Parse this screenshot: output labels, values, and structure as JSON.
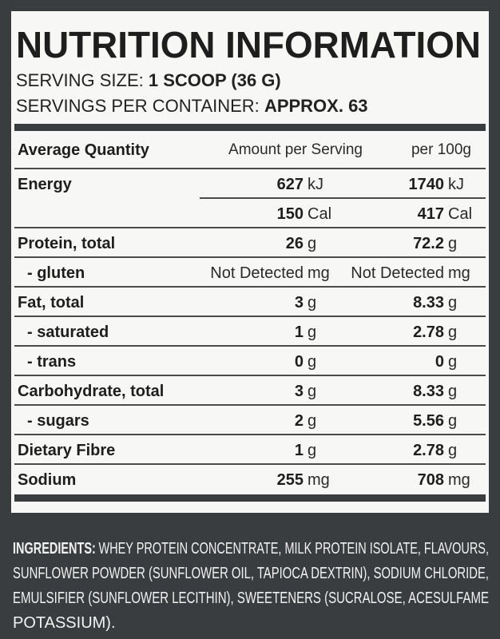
{
  "title": "NUTRITION INFORMATION",
  "serving_size": {
    "label": "SERVING SIZE:",
    "value": "1 SCOOP (36 G)"
  },
  "servings_per_container": {
    "label": "SERVINGS PER CONTAINER:",
    "value": "APPROX. 63"
  },
  "table": {
    "header": [
      "Average Quantity",
      "Amount per Serving",
      "per 100g"
    ],
    "rows": [
      {
        "label": "Energy",
        "serving": "627",
        "serving_unit": "kJ",
        "per100": "1740",
        "per100_unit": "kJ"
      },
      {
        "label": null,
        "serving": "150",
        "serving_unit": "Cal",
        "per100": "417",
        "per100_unit": "Cal"
      },
      {
        "label": "Protein, total",
        "serving": "26",
        "serving_unit": "g",
        "per100": "72.2",
        "per100_unit": "g"
      },
      {
        "label": "- gluten",
        "serving": "Not Detected",
        "serving_unit": "mg",
        "per100": "Not Detected",
        "per100_unit": "mg"
      },
      {
        "label": "Fat, total",
        "serving": "3",
        "serving_unit": "g",
        "per100": "8.33",
        "per100_unit": "g"
      },
      {
        "label": "- saturated",
        "serving": "1",
        "serving_unit": "g",
        "per100": "2.78",
        "per100_unit": "g"
      },
      {
        "label": "- trans",
        "serving": "0",
        "serving_unit": "g",
        "per100": "0",
        "per100_unit": "g"
      },
      {
        "label": "Carbohydrate, total",
        "serving": "3",
        "serving_unit": "g",
        "per100": "8.33",
        "per100_unit": "g"
      },
      {
        "label": "- sugars",
        "serving": "2",
        "serving_unit": "g",
        "per100": "5.56",
        "per100_unit": "g"
      },
      {
        "label": "Dietary Fibre",
        "serving": "1",
        "serving_unit": "g",
        "per100": "2.78",
        "per100_unit": "g"
      },
      {
        "label": "Sodium",
        "serving": "255",
        "serving_unit": "mg",
        "per100": "708",
        "per100_unit": "mg"
      }
    ]
  },
  "ingredients": {
    "label": "INGREDIENTS:",
    "lines": [
      "WHEY PROTEIN CONCENTRATE, MILK PROTEIN ISOLATE, FLAVOURS,",
      "SUNFLOWER POWDER (SUNFLOWER OIL, TAPIOCA DEXTRIN), SODIUM CHLORIDE,",
      "EMULSIFIER (SUNFLOWER LECITHIN), SWEETENERS (SUCRALOSE, ACESULFAME",
      "POTASSIUM)."
    ]
  }
}
